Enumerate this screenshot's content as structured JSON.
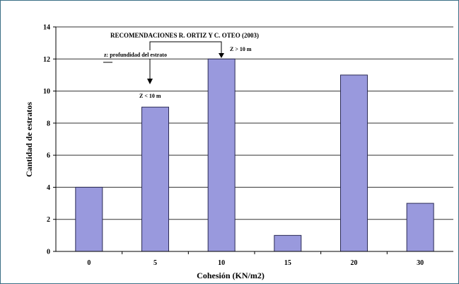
{
  "chart_data": {
    "type": "bar",
    "categories": [
      "0",
      "5",
      "10",
      "15",
      "20",
      "30"
    ],
    "values": [
      4,
      9,
      12,
      1,
      11,
      3
    ],
    "xlabel": "Cohesión (KN/m2)",
    "ylabel": "Cantidad de estratos",
    "ylim": [
      0,
      14
    ],
    "yticks": [
      0,
      2,
      4,
      6,
      8,
      10,
      12,
      14
    ],
    "grid": true,
    "legend": "none",
    "colors": {
      "bar_fill": "#9999dd",
      "bar_stroke": "#2b2b55",
      "grid": "#333333",
      "frame": "#3b6f86"
    },
    "annotations": {
      "title": "RECOMENDACIONES R. ORTIZ Y C. OTEO (2003)",
      "depth_note": "z: profundidad del estrato",
      "shallow_label": "Z < 10 m",
      "deep_label": "Z > 10 m"
    }
  }
}
